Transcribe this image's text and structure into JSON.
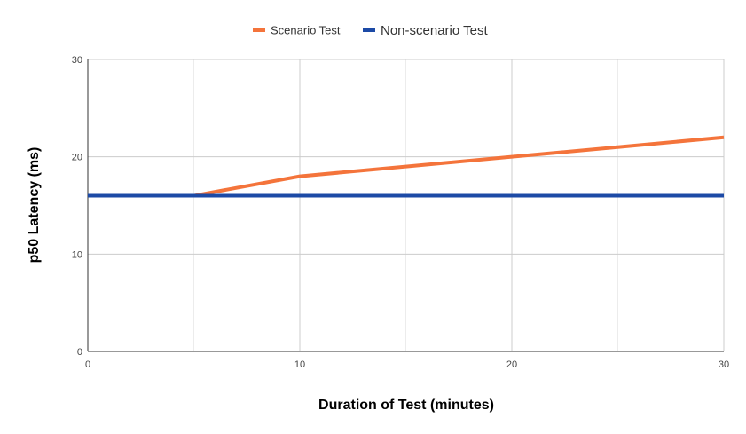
{
  "chart_data": {
    "type": "line",
    "title": "",
    "xlabel": "Duration of Test (minutes)",
    "ylabel": "p50 Latency (ms)",
    "xlim": [
      0,
      30
    ],
    "ylim": [
      0,
      30
    ],
    "x_ticks": [
      0,
      10,
      20,
      30
    ],
    "y_ticks": [
      0,
      10,
      20,
      30
    ],
    "x_minor_gridlines": [
      5,
      15,
      25
    ],
    "grid": true,
    "legend_position": "top-center",
    "series": [
      {
        "name": "Scenario Test",
        "color": "#f4743b",
        "x": [
          0,
          5,
          10,
          15,
          20,
          25,
          30
        ],
        "values": [
          16,
          16,
          18,
          19,
          20,
          21,
          22
        ]
      },
      {
        "name": "Non-scenario Test",
        "color": "#1c4aa6",
        "x": [
          0,
          30
        ],
        "values": [
          16,
          16
        ]
      }
    ]
  }
}
